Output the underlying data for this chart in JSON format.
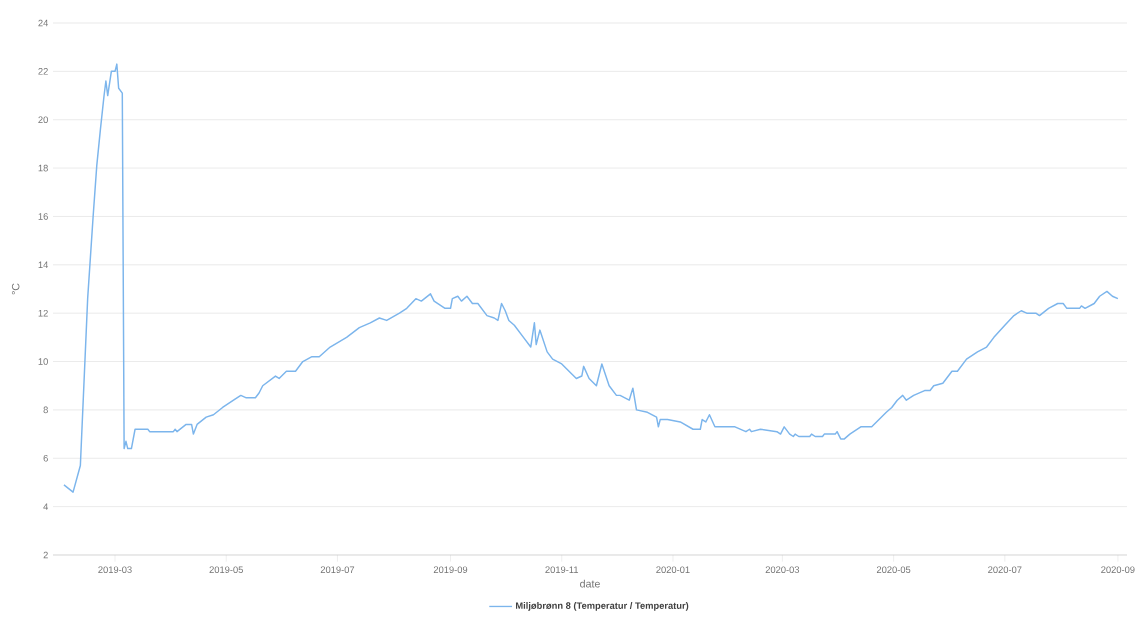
{
  "chart_data": {
    "type": "line",
    "xlabel": "date",
    "ylabel": "°C",
    "xlim": [
      "2019-01-26",
      "2020-09-06"
    ],
    "ylim": [
      2,
      24
    ],
    "xticks": [
      "2019-03",
      "2019-05",
      "2019-07",
      "2019-09",
      "2019-11",
      "2020-01",
      "2020-03",
      "2020-05",
      "2020-07",
      "2020-09"
    ],
    "yticks": [
      2,
      4,
      6,
      8,
      10,
      12,
      14,
      16,
      18,
      20,
      22,
      24
    ],
    "grid": "y",
    "legend": "bottom",
    "x": [
      "2019-02-01",
      "2019-02-06",
      "2019-02-10",
      "2019-02-14",
      "2019-02-17",
      "2019-02-19",
      "2019-02-21",
      "2019-02-23",
      "2019-02-24",
      "2019-02-25",
      "2019-02-27",
      "2019-03-01",
      "2019-03-02",
      "2019-03-03",
      "2019-03-05",
      "2019-03-06",
      "2019-03-07",
      "2019-03-08",
      "2019-03-10",
      "2019-03-12",
      "2019-03-19",
      "2019-03-20",
      "2019-04-02",
      "2019-04-03",
      "2019-04-04",
      "2019-04-09",
      "2019-04-12",
      "2019-04-13",
      "2019-04-15",
      "2019-04-20",
      "2019-04-24",
      "2019-04-29",
      "2019-05-05",
      "2019-05-09",
      "2019-05-12",
      "2019-05-17",
      "2019-05-19",
      "2019-05-21",
      "2019-05-28",
      "2019-05-30",
      "2019-06-03",
      "2019-06-08",
      "2019-06-12",
      "2019-06-17",
      "2019-06-21",
      "2019-06-27",
      "2019-07-06",
      "2019-07-13",
      "2019-07-19",
      "2019-07-24",
      "2019-07-28",
      "2019-08-04",
      "2019-08-08",
      "2019-08-13",
      "2019-08-16",
      "2019-08-21",
      "2019-08-23",
      "2019-08-29",
      "2019-09-01",
      "2019-09-02",
      "2019-09-05",
      "2019-09-07",
      "2019-09-10",
      "2019-09-13",
      "2019-09-16",
      "2019-09-21",
      "2019-09-25",
      "2019-09-27",
      "2019-09-29",
      "2019-10-01",
      "2019-10-03",
      "2019-10-06",
      "2019-10-11",
      "2019-10-15",
      "2019-10-17",
      "2019-10-18",
      "2019-10-20",
      "2019-10-24",
      "2019-10-27",
      "2019-11-01",
      "2019-11-09",
      "2019-11-12",
      "2019-11-13",
      "2019-11-16",
      "2019-11-20",
      "2019-11-23",
      "2019-11-27",
      "2019-12-01",
      "2019-12-03",
      "2019-12-08",
      "2019-12-10",
      "2019-12-12",
      "2019-12-18",
      "2019-12-23",
      "2019-12-24",
      "2019-12-25",
      "2019-12-29",
      "2020-01-05",
      "2020-01-12",
      "2020-01-16",
      "2020-01-17",
      "2020-01-19",
      "2020-01-21",
      "2020-01-24",
      "2020-01-27",
      "2020-02-04",
      "2020-02-10",
      "2020-02-12",
      "2020-02-13",
      "2020-02-18",
      "2020-02-27",
      "2020-02-29",
      "2020-03-02",
      "2020-03-05",
      "2020-03-07",
      "2020-03-08",
      "2020-03-10",
      "2020-03-16",
      "2020-03-17",
      "2020-03-19",
      "2020-03-23",
      "2020-03-24",
      "2020-03-30",
      "2020-03-31",
      "2020-04-02",
      "2020-04-04",
      "2020-04-07",
      "2020-04-13",
      "2020-04-19",
      "2020-04-23",
      "2020-04-27",
      "2020-04-30",
      "2020-05-03",
      "2020-05-06",
      "2020-05-08",
      "2020-05-12",
      "2020-05-18",
      "2020-05-21",
      "2020-05-23",
      "2020-05-28",
      "2020-06-02",
      "2020-06-05",
      "2020-06-10",
      "2020-06-16",
      "2020-06-21",
      "2020-06-25",
      "2020-07-01",
      "2020-07-06",
      "2020-07-10",
      "2020-07-13",
      "2020-07-18",
      "2020-07-20",
      "2020-07-25",
      "2020-07-30",
      "2020-08-02",
      "2020-08-04",
      "2020-08-11",
      "2020-08-12",
      "2020-08-14",
      "2020-08-19",
      "2020-08-22",
      "2020-08-26",
      "2020-08-29",
      "2020-09-01"
    ],
    "series": [
      {
        "name": "Miljøbrønn 8 (Temperatur / Temperatur)",
        "color": "#7cb5ec",
        "values": [
          4.9,
          4.6,
          5.7,
          12.6,
          16.0,
          18.1,
          19.6,
          21.0,
          21.6,
          21.0,
          22.0,
          22.0,
          22.3,
          21.3,
          21.1,
          6.4,
          6.7,
          6.4,
          6.4,
          7.2,
          7.2,
          7.1,
          7.1,
          7.2,
          7.1,
          7.4,
          7.4,
          7.0,
          7.4,
          7.7,
          7.8,
          8.1,
          8.4,
          8.6,
          8.5,
          8.5,
          8.7,
          9.0,
          9.4,
          9.3,
          9.6,
          9.6,
          10.0,
          10.2,
          10.2,
          10.6,
          11.0,
          11.4,
          11.6,
          11.8,
          11.7,
          12.0,
          12.2,
          12.6,
          12.5,
          12.8,
          12.5,
          12.2,
          12.2,
          12.6,
          12.7,
          12.5,
          12.7,
          12.4,
          12.4,
          11.9,
          11.8,
          11.7,
          12.4,
          12.1,
          11.7,
          11.5,
          11.0,
          10.6,
          11.6,
          10.7,
          11.3,
          10.4,
          10.1,
          9.9,
          9.3,
          9.4,
          9.8,
          9.3,
          9.0,
          9.9,
          9.0,
          8.6,
          8.6,
          8.4,
          8.9,
          8.0,
          7.9,
          7.7,
          7.3,
          7.6,
          7.6,
          7.5,
          7.2,
          7.2,
          7.6,
          7.5,
          7.8,
          7.3,
          7.3,
          7.3,
          7.1,
          7.2,
          7.1,
          7.2,
          7.1,
          7.0,
          7.3,
          7.0,
          6.9,
          7.0,
          6.9,
          6.9,
          7.0,
          6.9,
          6.9,
          7.0,
          7.0,
          7.1,
          6.8,
          6.8,
          7.0,
          7.3,
          7.3,
          7.6,
          7.9,
          8.1,
          8.4,
          8.6,
          8.4,
          8.6,
          8.8,
          8.8,
          9.0,
          9.1,
          9.6,
          9.6,
          10.1,
          10.4,
          10.6,
          11.0,
          11.5,
          11.9,
          12.1,
          12.0,
          12.0,
          11.9,
          12.2,
          12.4,
          12.4,
          12.2,
          12.2,
          12.3,
          12.2,
          12.4,
          12.7,
          12.9,
          12.7,
          12.6
        ]
      }
    ]
  }
}
